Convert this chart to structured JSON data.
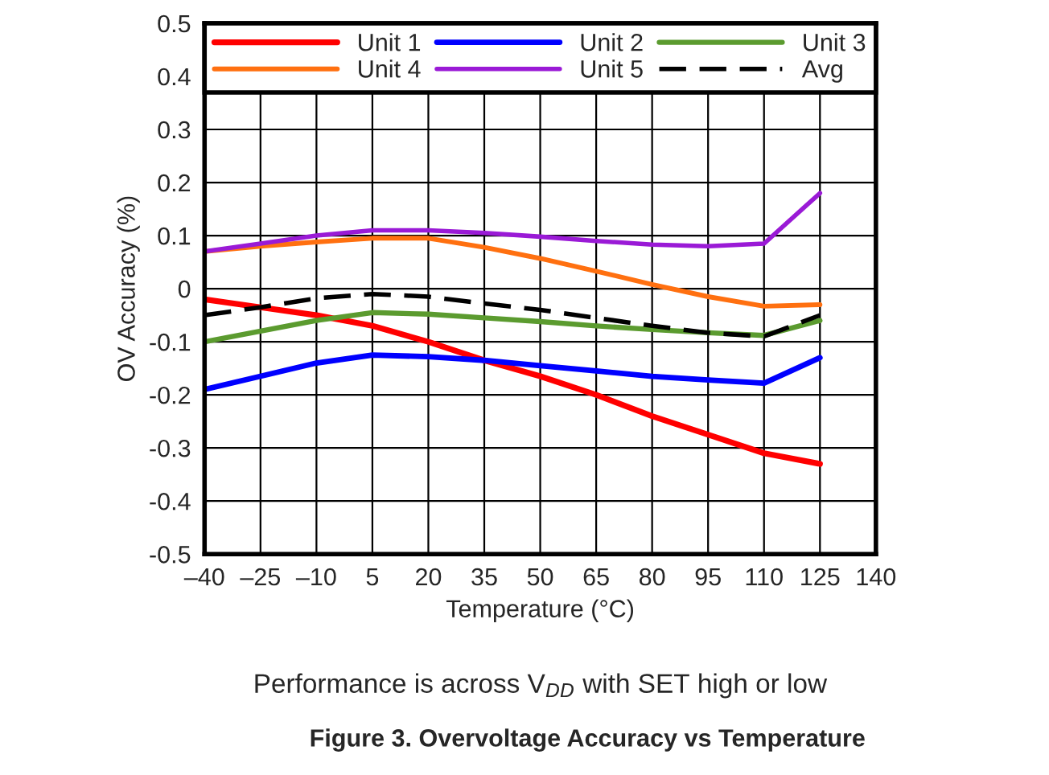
{
  "chart_data": {
    "type": "line",
    "title": "Figure 3. Overvoltage Accuracy vs Temperature",
    "annotations": [
      "Performance is across V$_{DD}$ with SET high or low"
    ],
    "xlabel": "Temperature (°C)",
    "ylabel": "OV Accuracy (%)",
    "x": [
      -40,
      -25,
      -10,
      5,
      20,
      35,
      50,
      65,
      80,
      95,
      110,
      125
    ],
    "series": [
      {
        "name": "Unit 1",
        "color": "#ff0000",
        "values": [
          -0.02,
          -0.035,
          -0.05,
          -0.07,
          -0.1,
          -0.135,
          -0.165,
          -0.2,
          -0.24,
          -0.275,
          -0.31,
          -0.33
        ]
      },
      {
        "name": "Unit 2",
        "color": "#0000ff",
        "values": [
          -0.19,
          -0.165,
          -0.14,
          -0.125,
          -0.128,
          -0.135,
          -0.145,
          -0.155,
          -0.165,
          -0.172,
          -0.178,
          -0.13
        ]
      },
      {
        "name": "Unit 3",
        "color": "#5b9b2f",
        "values": [
          -0.1,
          -0.08,
          -0.06,
          -0.045,
          -0.048,
          -0.055,
          -0.062,
          -0.07,
          -0.077,
          -0.083,
          -0.088,
          -0.06
        ]
      },
      {
        "name": "Unit 4",
        "color": "#ff7010",
        "values": [
          0.07,
          0.08,
          0.088,
          0.095,
          0.095,
          0.078,
          0.057,
          0.033,
          0.008,
          -0.015,
          -0.033,
          -0.03
        ]
      },
      {
        "name": "Unit 5",
        "color": "#9a1ad6",
        "values": [
          0.07,
          0.085,
          0.1,
          0.11,
          0.11,
          0.105,
          0.098,
          0.09,
          0.083,
          0.08,
          0.085,
          0.18
        ]
      },
      {
        "name": "Avg",
        "color": "#000000",
        "line_style": "dashed",
        "values": [
          -0.05,
          -0.035,
          -0.018,
          -0.01,
          -0.015,
          -0.028,
          -0.04,
          -0.055,
          -0.07,
          -0.083,
          -0.09,
          -0.05
        ]
      }
    ],
    "xlim": [
      -40,
      140
    ],
    "ylim": [
      -0.5,
      0.5
    ],
    "xticks": [
      {
        "value": -40,
        "label": "–40"
      },
      {
        "value": -25,
        "label": "–25"
      },
      {
        "value": -10,
        "label": "–10"
      },
      5,
      20,
      35,
      50,
      65,
      80,
      95,
      110,
      125,
      140
    ],
    "yticks": [
      -0.5,
      -0.4,
      -0.3,
      -0.2,
      -0.1,
      0,
      0.1,
      0.2,
      0.3,
      0.4,
      0.5
    ],
    "grid": true,
    "legend": "top"
  }
}
